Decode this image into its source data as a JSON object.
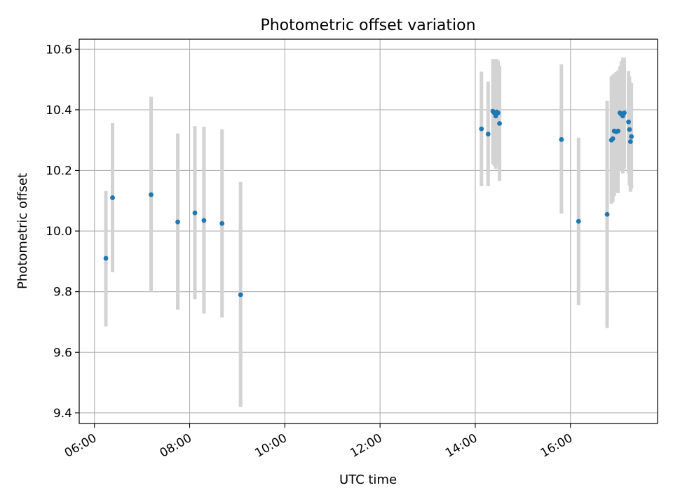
{
  "chart_data": {
    "type": "scatter",
    "title": "Photometric offset variation",
    "xlabel": "UTC time",
    "ylabel": "Photometric offset",
    "x_axis_unit": "hours UTC",
    "xlim": [
      5.68,
      17.83
    ],
    "ylim": [
      9.365,
      10.633
    ],
    "x_ticks": [
      {
        "value": 6,
        "label": "06:00"
      },
      {
        "value": 8,
        "label": "08:00"
      },
      {
        "value": 10,
        "label": "10:00"
      },
      {
        "value": 12,
        "label": "12:00"
      },
      {
        "value": 14,
        "label": "14:00"
      },
      {
        "value": 16,
        "label": "16:00"
      }
    ],
    "y_ticks": [
      {
        "value": 9.4,
        "label": "9.4"
      },
      {
        "value": 9.6,
        "label": "9.6"
      },
      {
        "value": 9.8,
        "label": "9.8"
      },
      {
        "value": 10.0,
        "label": "10.0"
      },
      {
        "value": 10.2,
        "label": "10.2"
      },
      {
        "value": 10.4,
        "label": "10.4"
      },
      {
        "value": 10.6,
        "label": "10.6"
      }
    ],
    "grid": true,
    "marker_color": "#1f77b4",
    "errorbar_color": "#d3d3d3",
    "points": [
      {
        "x": 6.24,
        "y": 9.91,
        "lo": 9.685,
        "hi": 10.132
      },
      {
        "x": 6.38,
        "y": 10.11,
        "lo": 9.864,
        "hi": 10.356
      },
      {
        "x": 7.19,
        "y": 10.12,
        "lo": 9.8,
        "hi": 10.443
      },
      {
        "x": 7.75,
        "y": 10.03,
        "lo": 9.74,
        "hi": 10.322
      },
      {
        "x": 8.11,
        "y": 10.06,
        "lo": 9.775,
        "hi": 10.346
      },
      {
        "x": 8.3,
        "y": 10.035,
        "lo": 9.728,
        "hi": 10.344
      },
      {
        "x": 8.68,
        "y": 10.025,
        "lo": 9.715,
        "hi": 10.336
      },
      {
        "x": 9.07,
        "y": 9.79,
        "lo": 9.42,
        "hi": 10.162
      },
      {
        "x": 14.13,
        "y": 10.337,
        "lo": 10.148,
        "hi": 10.526
      },
      {
        "x": 14.27,
        "y": 10.32,
        "lo": 10.148,
        "hi": 10.493
      },
      {
        "x": 14.37,
        "y": 10.395,
        "lo": 10.222,
        "hi": 10.568
      },
      {
        "x": 14.4,
        "y": 10.39,
        "lo": 10.215,
        "hi": 10.565
      },
      {
        "x": 14.43,
        "y": 10.38,
        "lo": 10.205,
        "hi": 10.555
      },
      {
        "x": 14.45,
        "y": 10.393,
        "lo": 10.218,
        "hi": 10.568
      },
      {
        "x": 14.48,
        "y": 10.39,
        "lo": 10.225,
        "hi": 10.562
      },
      {
        "x": 14.51,
        "y": 10.355,
        "lo": 10.165,
        "hi": 10.545
      },
      {
        "x": 15.81,
        "y": 10.302,
        "lo": 10.058,
        "hi": 10.55
      },
      {
        "x": 16.17,
        "y": 10.032,
        "lo": 9.755,
        "hi": 10.308
      },
      {
        "x": 16.77,
        "y": 10.055,
        "lo": 9.68,
        "hi": 10.43
      },
      {
        "x": 16.86,
        "y": 10.3,
        "lo": 10.09,
        "hi": 10.51
      },
      {
        "x": 16.89,
        "y": 10.305,
        "lo": 10.095,
        "hi": 10.515
      },
      {
        "x": 16.92,
        "y": 10.33,
        "lo": 10.115,
        "hi": 10.52
      },
      {
        "x": 16.96,
        "y": 10.328,
        "lo": 10.13,
        "hi": 10.525
      },
      {
        "x": 17.0,
        "y": 10.33,
        "lo": 10.125,
        "hi": 10.53
      },
      {
        "x": 17.04,
        "y": 10.39,
        "lo": 10.2,
        "hi": 10.545
      },
      {
        "x": 17.07,
        "y": 10.385,
        "lo": 10.21,
        "hi": 10.56
      },
      {
        "x": 17.1,
        "y": 10.38,
        "lo": 10.19,
        "hi": 10.572
      },
      {
        "x": 17.13,
        "y": 10.39,
        "lo": 10.205,
        "hi": 10.572
      },
      {
        "x": 17.22,
        "y": 10.36,
        "lo": 10.19,
        "hi": 10.528
      },
      {
        "x": 17.24,
        "y": 10.335,
        "lo": 10.15,
        "hi": 10.51
      },
      {
        "x": 17.26,
        "y": 10.295,
        "lo": 10.13,
        "hi": 10.49
      },
      {
        "x": 17.28,
        "y": 10.312,
        "lo": 10.14,
        "hi": 10.488
      }
    ]
  }
}
